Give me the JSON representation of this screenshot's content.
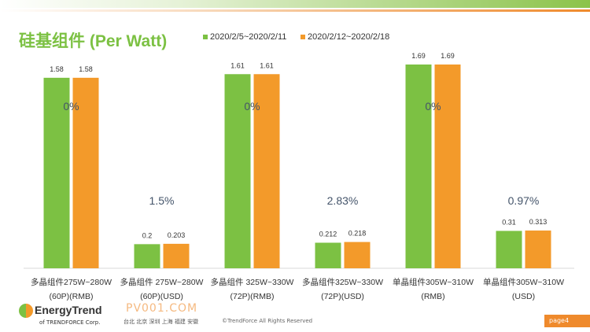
{
  "chart_data": {
    "type": "bar",
    "title": "硅基组件 (Per Watt)",
    "categories": [
      [
        "多晶组件275W~280W",
        "(60P)(RMB)"
      ],
      [
        "多晶组件 275W~280W",
        "(60P)(USD)"
      ],
      [
        "多晶组件 325W~330W",
        "(72P)(RMB)"
      ],
      [
        "多晶组件325W~330W",
        "(72P)(USD)"
      ],
      [
        "单晶组件305W~310W",
        "(RMB)"
      ],
      [
        "单晶组件305W~310W",
        "(USD)"
      ]
    ],
    "series": [
      {
        "name": "2020/2/5~2020/2/11",
        "color": "#7cc143",
        "values": [
          1.58,
          0.2,
          1.61,
          0.212,
          1.69,
          0.31
        ],
        "labels": [
          "1.58",
          "0.2",
          "1.61",
          "0.212",
          "1.69",
          "0.31"
        ]
      },
      {
        "name": "2020/2/12~2020/2/18",
        "color": "#f39a2a",
        "values": [
          1.58,
          0.203,
          1.61,
          0.218,
          1.69,
          0.313
        ],
        "labels": [
          "1.58",
          "0.203",
          "1.61",
          "0.218",
          "1.69",
          "0.313"
        ]
      }
    ],
    "change_labels": [
      "0%",
      "1.5%",
      "0%",
      "2.83%",
      "0%",
      "0.97%"
    ],
    "ylim": [
      0,
      1.69
    ],
    "legend": "top",
    "grid": false
  },
  "footer": {
    "brand": "EnergyTrend",
    "brand_sub": "of TRENDFORCE Corp.",
    "watermark": "PV001.COM",
    "cities": "台北 北京 深圳 上海 福建 安徽",
    "copyright": "©TrendForce All Rights Reserved",
    "page": "page4"
  }
}
